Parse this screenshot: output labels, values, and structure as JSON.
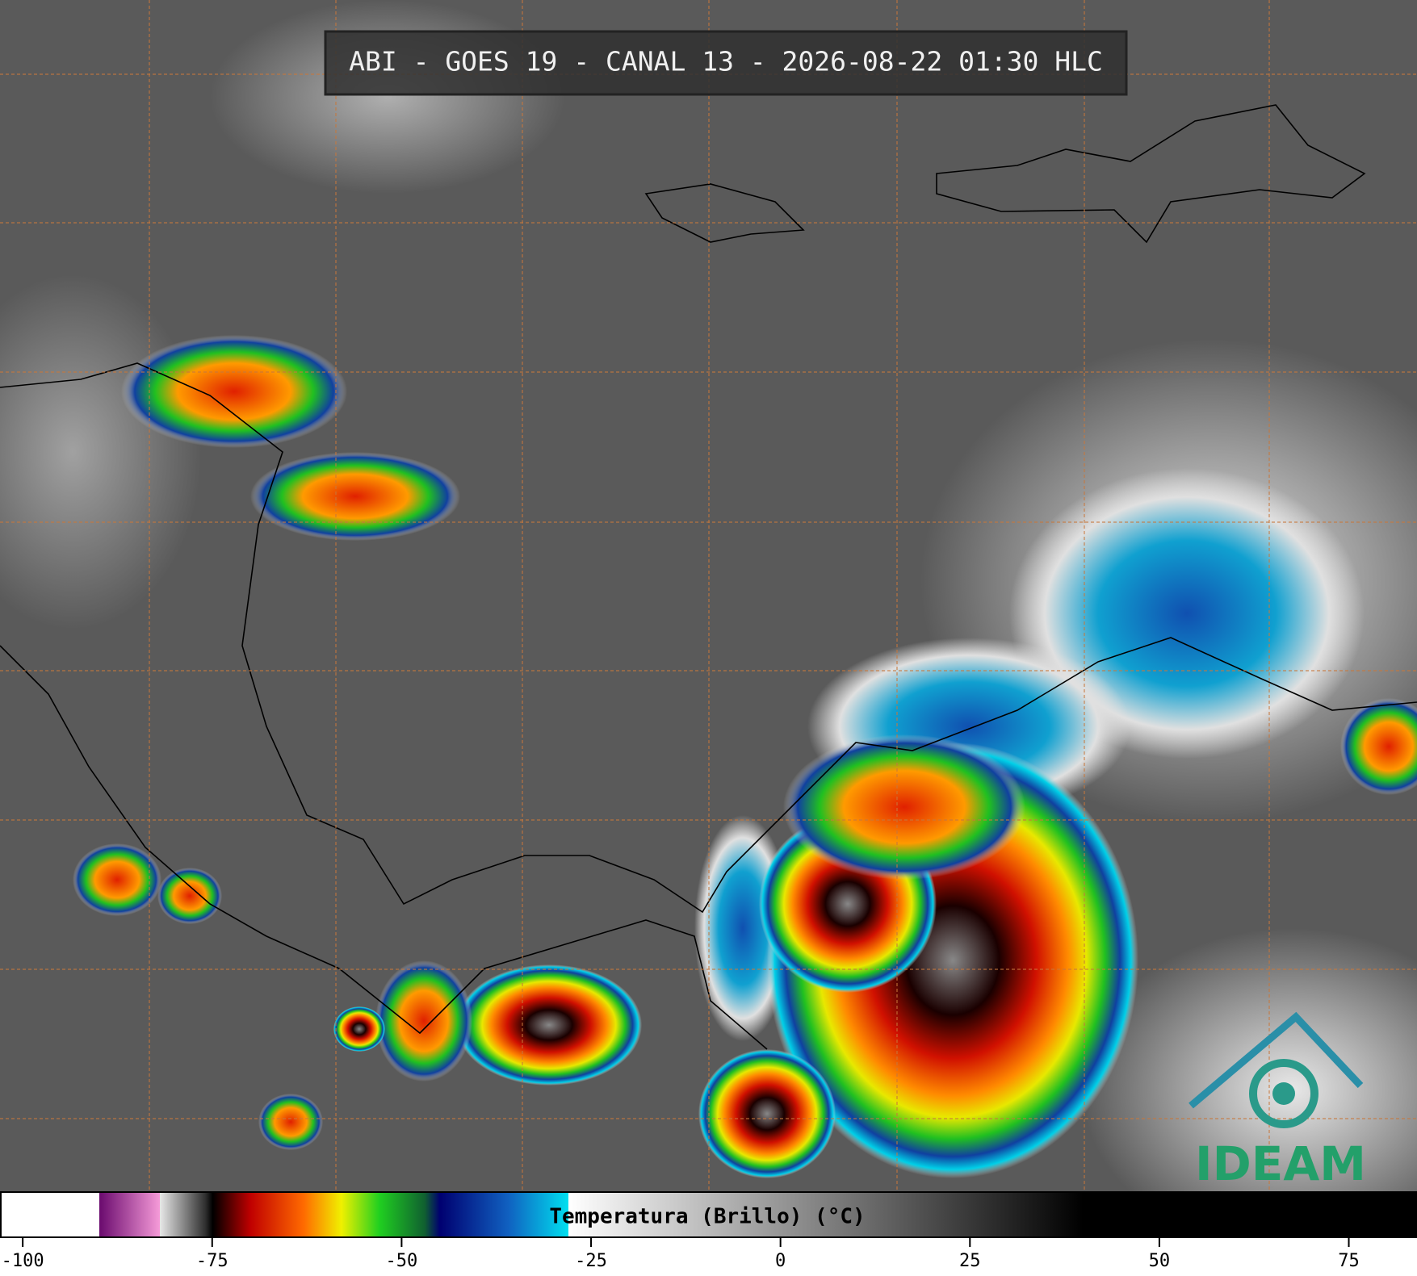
{
  "header": {
    "title": "ABI - GOES 19 - CANAL 13 - 2026-08-22 01:30 HLC"
  },
  "colorbar": {
    "label": "Temperatura (Brillo) (°C)",
    "lim": [
      -103,
      84
    ],
    "ticks": [
      -100,
      -75,
      -50,
      -25,
      0,
      25,
      50,
      75
    ],
    "stops": [
      {
        "value": -103,
        "color": "#ffffff"
      },
      {
        "value": -90,
        "color": "#ffffff"
      },
      {
        "value": -90,
        "color": "#6a0a6e"
      },
      {
        "value": -82,
        "color": "#f59ad8"
      },
      {
        "value": -82,
        "color": "#e8e8e8"
      },
      {
        "value": -76,
        "color": "#303030"
      },
      {
        "value": -75,
        "color": "#000000"
      },
      {
        "value": -70,
        "color": "#c00000"
      },
      {
        "value": -63,
        "color": "#ff6a00"
      },
      {
        "value": -58,
        "color": "#f0f000"
      },
      {
        "value": -53,
        "color": "#20d020"
      },
      {
        "value": -47,
        "color": "#106030"
      },
      {
        "value": -45,
        "color": "#000070"
      },
      {
        "value": -36,
        "color": "#1060c0"
      },
      {
        "value": -28,
        "color": "#00e0f0"
      },
      {
        "value": -28,
        "color": "#ffffff"
      },
      {
        "value": 40,
        "color": "#000000"
      },
      {
        "value": 84,
        "color": "#000000"
      }
    ]
  },
  "logo": {
    "text": "IDEAM"
  }
}
